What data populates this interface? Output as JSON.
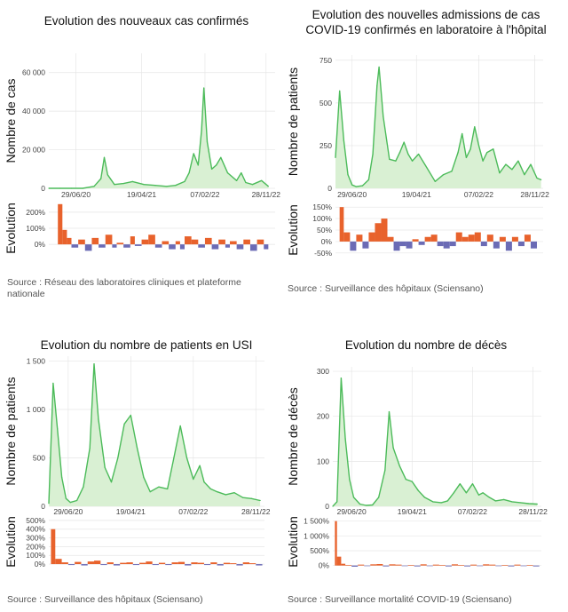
{
  "colors": {
    "line": "#4cbb5a",
    "fill": "#d9f0d3",
    "up": "#e8622c",
    "down": "#6b6bb5",
    "grid": "#e6e6e6"
  },
  "chart_data": [
    {
      "type": "area",
      "title": "Evolution des nouveaux cas confirmés",
      "ylabel": "Nombre de cas",
      "ylim": [
        0,
        70000
      ],
      "yticks": [
        0,
        20000,
        40000,
        60000
      ],
      "ytick_labels": [
        "0",
        "20 000",
        "40 000",
        "60 000"
      ],
      "xlim": [
        0,
        1000
      ],
      "xticks": [
        120,
        410,
        690,
        960
      ],
      "xtick_labels": [
        "29/06/20",
        "19/04/21",
        "07/02/22",
        "28/11/22"
      ],
      "x": [
        0,
        50,
        100,
        150,
        200,
        230,
        245,
        260,
        290,
        330,
        370,
        420,
        470,
        520,
        560,
        600,
        620,
        640,
        660,
        675,
        685,
        700,
        720,
        740,
        760,
        790,
        830,
        850,
        870,
        900,
        940,
        970
      ],
      "values": [
        0,
        0,
        0,
        0,
        1000,
        5000,
        16000,
        7000,
        2000,
        2500,
        3500,
        2000,
        1500,
        1000,
        1500,
        3500,
        8000,
        18000,
        12000,
        30000,
        52000,
        24000,
        10000,
        12000,
        16000,
        8000,
        4000,
        8000,
        3000,
        2000,
        4000,
        1000
      ],
      "evolution": {
        "ylim": [
          -60,
          260
        ],
        "yticks": [
          0,
          100,
          200
        ],
        "ytick_labels": [
          "0%",
          "100%",
          "200%"
        ],
        "x": [
          0,
          40,
          60,
          80,
          100,
          130,
          160,
          190,
          220,
          250,
          280,
          300,
          330,
          360,
          380,
          410,
          440,
          470,
          500,
          530,
          560,
          580,
          600,
          630,
          660,
          690,
          720,
          750,
          780,
          800,
          830,
          860,
          890,
          920,
          950,
          970
        ],
        "values": [
          0,
          250,
          90,
          40,
          -20,
          30,
          -40,
          40,
          -20,
          60,
          -20,
          10,
          -20,
          50,
          -10,
          30,
          60,
          -20,
          20,
          -30,
          20,
          -30,
          50,
          30,
          -20,
          40,
          -30,
          30,
          -20,
          20,
          -30,
          30,
          -40,
          30,
          -30,
          30
        ]
      },
      "source": "Source : Réseau des laboratoires cliniques et plateforme nationale"
    },
    {
      "type": "area",
      "title": "Evolution des nouvelles admissions de cas COVID-19 confirmés en laboratoire à l'hôpital",
      "ylabel": "Nombre de patients",
      "ylim": [
        0,
        780
      ],
      "yticks": [
        0,
        250,
        500,
        750
      ],
      "ytick_labels": [
        "0",
        "250",
        "500",
        "750"
      ],
      "xlim": [
        0,
        1000
      ],
      "xticks": [
        80,
        390,
        690,
        960
      ],
      "xtick_labels": [
        "29/06/20",
        "19/04/21",
        "07/02/22",
        "28/11/22"
      ],
      "x": [
        0,
        20,
        40,
        60,
        80,
        100,
        130,
        160,
        180,
        200,
        210,
        230,
        260,
        290,
        310,
        330,
        350,
        370,
        400,
        440,
        480,
        520,
        560,
        590,
        610,
        630,
        650,
        670,
        690,
        710,
        730,
        760,
        790,
        820,
        850,
        880,
        910,
        940,
        970,
        990
      ],
      "values": [
        180,
        570,
        280,
        80,
        20,
        10,
        15,
        50,
        200,
        600,
        710,
        420,
        170,
        160,
        210,
        270,
        200,
        160,
        200,
        120,
        40,
        80,
        100,
        210,
        320,
        180,
        230,
        360,
        250,
        160,
        210,
        230,
        90,
        140,
        110,
        160,
        80,
        140,
        60,
        50
      ],
      "evolution": {
        "ylim": [
          -70,
          170
        ],
        "yticks": [
          -50,
          0,
          50,
          100,
          150
        ],
        "ytick_labels": [
          "-50%",
          "0%",
          "50%",
          "100%",
          "150%"
        ],
        "x": [
          0,
          20,
          40,
          70,
          100,
          130,
          160,
          190,
          220,
          250,
          280,
          310,
          340,
          370,
          400,
          430,
          460,
          490,
          520,
          550,
          580,
          610,
          640,
          670,
          700,
          730,
          760,
          790,
          820,
          850,
          880,
          910,
          940,
          970
        ],
        "values": [
          0,
          150,
          40,
          -40,
          30,
          -30,
          40,
          80,
          100,
          20,
          -40,
          -20,
          -30,
          10,
          -15,
          20,
          30,
          -20,
          -30,
          -20,
          40,
          20,
          30,
          40,
          -20,
          30,
          -30,
          20,
          -40,
          20,
          -20,
          30,
          -30,
          20
        ],
        "source_note": ""
      },
      "source": "Source : Surveillance des hôpitaux (Sciensano)"
    },
    {
      "type": "area",
      "title": "Evolution du nombre de patients en USI",
      "ylabel": "Nombre de patients",
      "ylim": [
        0,
        1550
      ],
      "yticks": [
        0,
        500,
        1000,
        1500
      ],
      "ytick_labels": [
        "0",
        "500",
        "1 000",
        "1 500"
      ],
      "xlim": [
        0,
        1000
      ],
      "xticks": [
        90,
        380,
        670,
        960
      ],
      "xtick_labels": [
        "29/06/20",
        "19/04/21",
        "07/02/22",
        "28/11/22"
      ],
      "x": [
        0,
        20,
        40,
        60,
        80,
        100,
        130,
        160,
        190,
        210,
        230,
        260,
        290,
        320,
        350,
        380,
        410,
        440,
        470,
        510,
        550,
        580,
        610,
        640,
        670,
        700,
        720,
        750,
        780,
        820,
        860,
        900,
        940,
        980
      ],
      "values": [
        30,
        1270,
        800,
        300,
        80,
        40,
        60,
        200,
        600,
        1470,
        900,
        400,
        250,
        500,
        850,
        940,
        600,
        300,
        150,
        200,
        180,
        500,
        830,
        500,
        280,
        420,
        250,
        180,
        150,
        120,
        140,
        90,
        80,
        60
      ],
      "evolution": {
        "ylim": [
          -50,
          560
        ],
        "yticks": [
          0,
          100,
          200,
          300,
          400,
          500
        ],
        "ytick_labels": [
          "0%",
          "100%",
          "200%",
          "300%",
          "400%",
          "500%"
        ],
        "x": [
          0,
          10,
          30,
          60,
          90,
          120,
          150,
          180,
          210,
          240,
          270,
          300,
          330,
          360,
          390,
          420,
          450,
          480,
          510,
          540,
          570,
          600,
          630,
          660,
          690,
          720,
          750,
          780,
          810,
          840,
          870,
          900,
          930,
          960,
          990
        ],
        "values": [
          0,
          400,
          60,
          20,
          -10,
          25,
          -15,
          30,
          40,
          -10,
          20,
          -15,
          15,
          20,
          -10,
          15,
          30,
          -10,
          15,
          -10,
          20,
          25,
          -15,
          20,
          15,
          -10,
          20,
          -15,
          15,
          10,
          -15,
          20,
          10,
          -15,
          15
        ]
      },
      "source": "Source : Surveillance des hôpitaux (Sciensano)"
    },
    {
      "type": "area",
      "title": "Evolution du nombre de décès",
      "ylabel": "Nombre de décès",
      "ylim": [
        0,
        310
      ],
      "yticks": [
        0,
        100,
        200,
        300
      ],
      "ytick_labels": [
        "0",
        "100",
        "200",
        "300"
      ],
      "xlim": [
        0,
        1000
      ],
      "xticks": [
        90,
        380,
        670,
        960
      ],
      "xtick_labels": [
        "29/06/20",
        "19/04/21",
        "07/02/22",
        "28/11/22"
      ],
      "x": [
        0,
        20,
        40,
        60,
        80,
        100,
        130,
        160,
        190,
        220,
        250,
        270,
        290,
        320,
        350,
        380,
        410,
        440,
        480,
        520,
        550,
        580,
        610,
        640,
        670,
        700,
        720,
        750,
        780,
        820,
        860,
        900,
        940,
        980
      ],
      "values": [
        0,
        10,
        285,
        150,
        60,
        20,
        5,
        2,
        3,
        20,
        80,
        210,
        130,
        90,
        60,
        55,
        35,
        20,
        10,
        8,
        12,
        30,
        50,
        30,
        50,
        25,
        30,
        20,
        12,
        15,
        10,
        8,
        6,
        5
      ],
      "evolution": {
        "ylim": [
          -100,
          1700
        ],
        "yticks": [
          0,
          500,
          1000,
          1500
        ],
        "ytick_labels": [
          "0%",
          "500%",
          "1 000%",
          "1 500%"
        ],
        "x": [
          0,
          10,
          20,
          40,
          60,
          90,
          120,
          150,
          180,
          210,
          240,
          270,
          300,
          330,
          360,
          390,
          420,
          450,
          480,
          510,
          540,
          570,
          600,
          630,
          660,
          690,
          720,
          750,
          780,
          810,
          840,
          870,
          900,
          930,
          960,
          990
        ],
        "values": [
          0,
          1500,
          300,
          60,
          20,
          -40,
          30,
          -20,
          40,
          50,
          -30,
          40,
          30,
          -20,
          20,
          -30,
          40,
          -20,
          30,
          20,
          -30,
          40,
          20,
          -30,
          30,
          -20,
          40,
          30,
          -20,
          20,
          -30,
          30,
          -20,
          20,
          -30,
          20
        ]
      },
      "source": "Source : Surveillance mortalité COVID-19 (Sciensano)"
    }
  ],
  "evolution_label": "Evolution"
}
